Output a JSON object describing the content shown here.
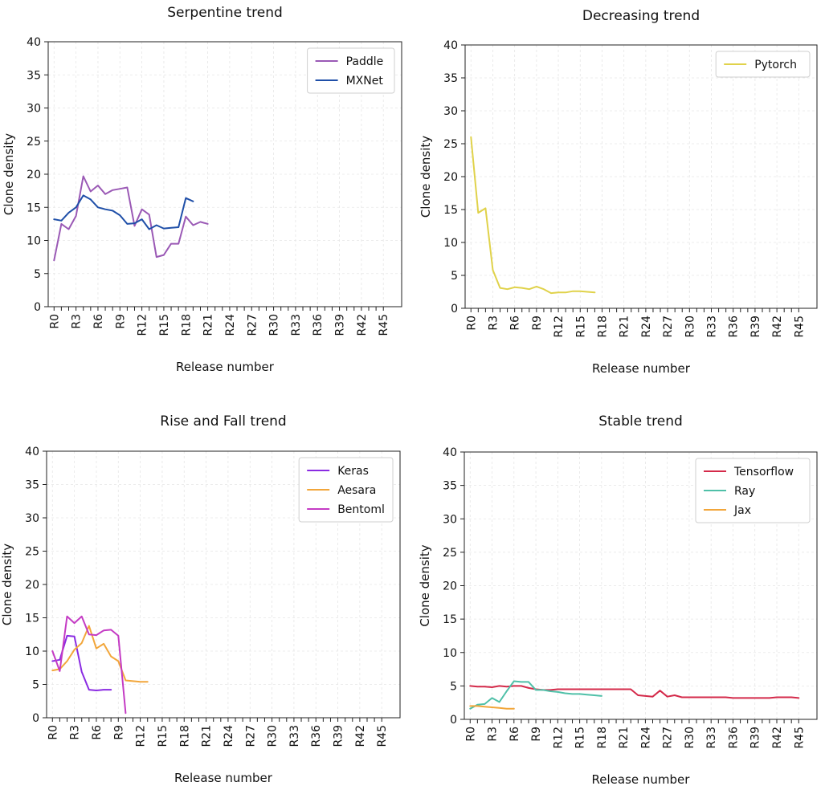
{
  "chart_data": [
    {
      "type": "line",
      "title": "Serpentine trend",
      "xlabel": "Release number",
      "ylabel": "Clone density",
      "ylim": [
        0,
        40
      ],
      "yticks": [
        "0",
        "5",
        "10",
        "15",
        "20",
        "25",
        "30",
        "35",
        "40"
      ],
      "xticks": [
        "R0",
        "R3",
        "R6",
        "R9",
        "R12",
        "R15",
        "R18",
        "R21",
        "R24",
        "R27",
        "R30",
        "R33",
        "R36",
        "R39",
        "R42",
        "R45"
      ],
      "grid": true,
      "legend_position": "top-right",
      "series": [
        {
          "name": "Paddle",
          "color": "#9a59b5",
          "values": [
            7.0,
            12.5,
            11.7,
            13.7,
            19.7,
            17.4,
            18.3,
            17.0,
            17.6,
            17.8,
            18.0,
            12.2,
            14.7,
            13.9,
            7.5,
            7.8,
            9.5,
            9.5,
            13.6,
            12.3,
            12.8,
            12.5
          ]
        },
        {
          "name": "MXNet",
          "color": "#1f4fa8",
          "values": [
            13.2,
            13.0,
            14.2,
            15.0,
            16.8,
            16.2,
            15.0,
            14.7,
            14.5,
            13.8,
            12.5,
            12.6,
            13.2,
            11.7,
            12.3,
            11.8,
            11.9,
            12.0,
            16.4,
            15.9
          ]
        }
      ]
    },
    {
      "type": "line",
      "title": "Decreasing trend",
      "xlabel": "Release number",
      "ylabel": "Clone density",
      "ylim": [
        0,
        40
      ],
      "yticks": [
        "0",
        "5",
        "10",
        "15",
        "20",
        "25",
        "30",
        "35",
        "40"
      ],
      "xticks": [
        "R0",
        "R3",
        "R6",
        "R9",
        "R12",
        "R15",
        "R18",
        "R21",
        "R24",
        "R27",
        "R30",
        "R33",
        "R36",
        "R39",
        "R42",
        "R45"
      ],
      "grid": true,
      "legend_position": "top-right",
      "series": [
        {
          "name": "Pytorch",
          "color": "#e0d24a",
          "values": [
            26.0,
            14.5,
            15.2,
            5.8,
            3.1,
            2.9,
            3.2,
            3.1,
            2.9,
            3.3,
            2.9,
            2.3,
            2.4,
            2.4,
            2.6,
            2.6,
            2.5,
            2.4
          ]
        }
      ]
    },
    {
      "type": "line",
      "title": "Rise and Fall trend",
      "xlabel": "Release number",
      "ylabel": "Clone density",
      "ylim": [
        0,
        40
      ],
      "yticks": [
        "0",
        "5",
        "10",
        "15",
        "20",
        "25",
        "30",
        "35",
        "40"
      ],
      "xticks": [
        "R0",
        "R3",
        "R6",
        "R9",
        "R12",
        "R15",
        "R18",
        "R21",
        "R24",
        "R27",
        "R30",
        "R33",
        "R36",
        "R39",
        "R42",
        "R45"
      ],
      "grid": true,
      "legend_position": "top-right",
      "series": [
        {
          "name": "Keras",
          "color": "#8a2be2",
          "values": [
            8.5,
            8.7,
            12.3,
            12.2,
            6.9,
            4.2,
            4.1,
            4.2,
            4.2
          ]
        },
        {
          "name": "Aesara",
          "color": "#f2a63a",
          "values": [
            7.1,
            7.3,
            8.5,
            10.2,
            11.2,
            13.8,
            10.4,
            11.1,
            9.2,
            8.5,
            5.6,
            5.5,
            5.4,
            5.4
          ]
        },
        {
          "name": "Bentoml",
          "color": "#c43bc4",
          "values": [
            10.0,
            7.0,
            15.2,
            14.2,
            15.2,
            12.5,
            12.4,
            13.1,
            13.2,
            12.3,
            0.7
          ]
        }
      ]
    },
    {
      "type": "line",
      "title": "Stable trend",
      "xlabel": "Release number",
      "ylabel": "Clone density",
      "ylim": [
        0,
        40
      ],
      "yticks": [
        "0",
        "5",
        "10",
        "15",
        "20",
        "25",
        "30",
        "35",
        "40"
      ],
      "xticks": [
        "R0",
        "R3",
        "R6",
        "R9",
        "R12",
        "R15",
        "R18",
        "R21",
        "R24",
        "R27",
        "R30",
        "R33",
        "R36",
        "R39",
        "R42",
        "R45"
      ],
      "grid": true,
      "legend_position": "top-right",
      "series": [
        {
          "name": "Tensorflow",
          "color": "#d42a4a",
          "values": [
            5.0,
            4.9,
            4.9,
            4.8,
            5.0,
            4.9,
            5.0,
            5.0,
            4.7,
            4.5,
            4.4,
            4.4,
            4.5,
            4.5,
            4.5,
            4.5,
            4.5,
            4.5,
            4.5,
            4.5,
            4.5,
            4.5,
            4.5,
            3.6,
            3.5,
            3.4,
            4.3,
            3.4,
            3.6,
            3.3,
            3.3,
            3.3,
            3.3,
            3.3,
            3.3,
            3.3,
            3.2,
            3.2,
            3.2,
            3.2,
            3.2,
            3.2,
            3.3,
            3.3,
            3.3,
            3.2
          ]
        },
        {
          "name": "Ray",
          "color": "#4fc0a8",
          "values": [
            1.6,
            2.2,
            2.3,
            3.2,
            2.6,
            4.2,
            5.7,
            5.6,
            5.6,
            4.4,
            4.4,
            4.2,
            4.1,
            3.9,
            3.8,
            3.8,
            3.7,
            3.6,
            3.5
          ]
        },
        {
          "name": "Jax",
          "color": "#f2a63a",
          "values": [
            2.0,
            2.0,
            1.9,
            1.8,
            1.7,
            1.6,
            1.6
          ]
        }
      ]
    }
  ]
}
